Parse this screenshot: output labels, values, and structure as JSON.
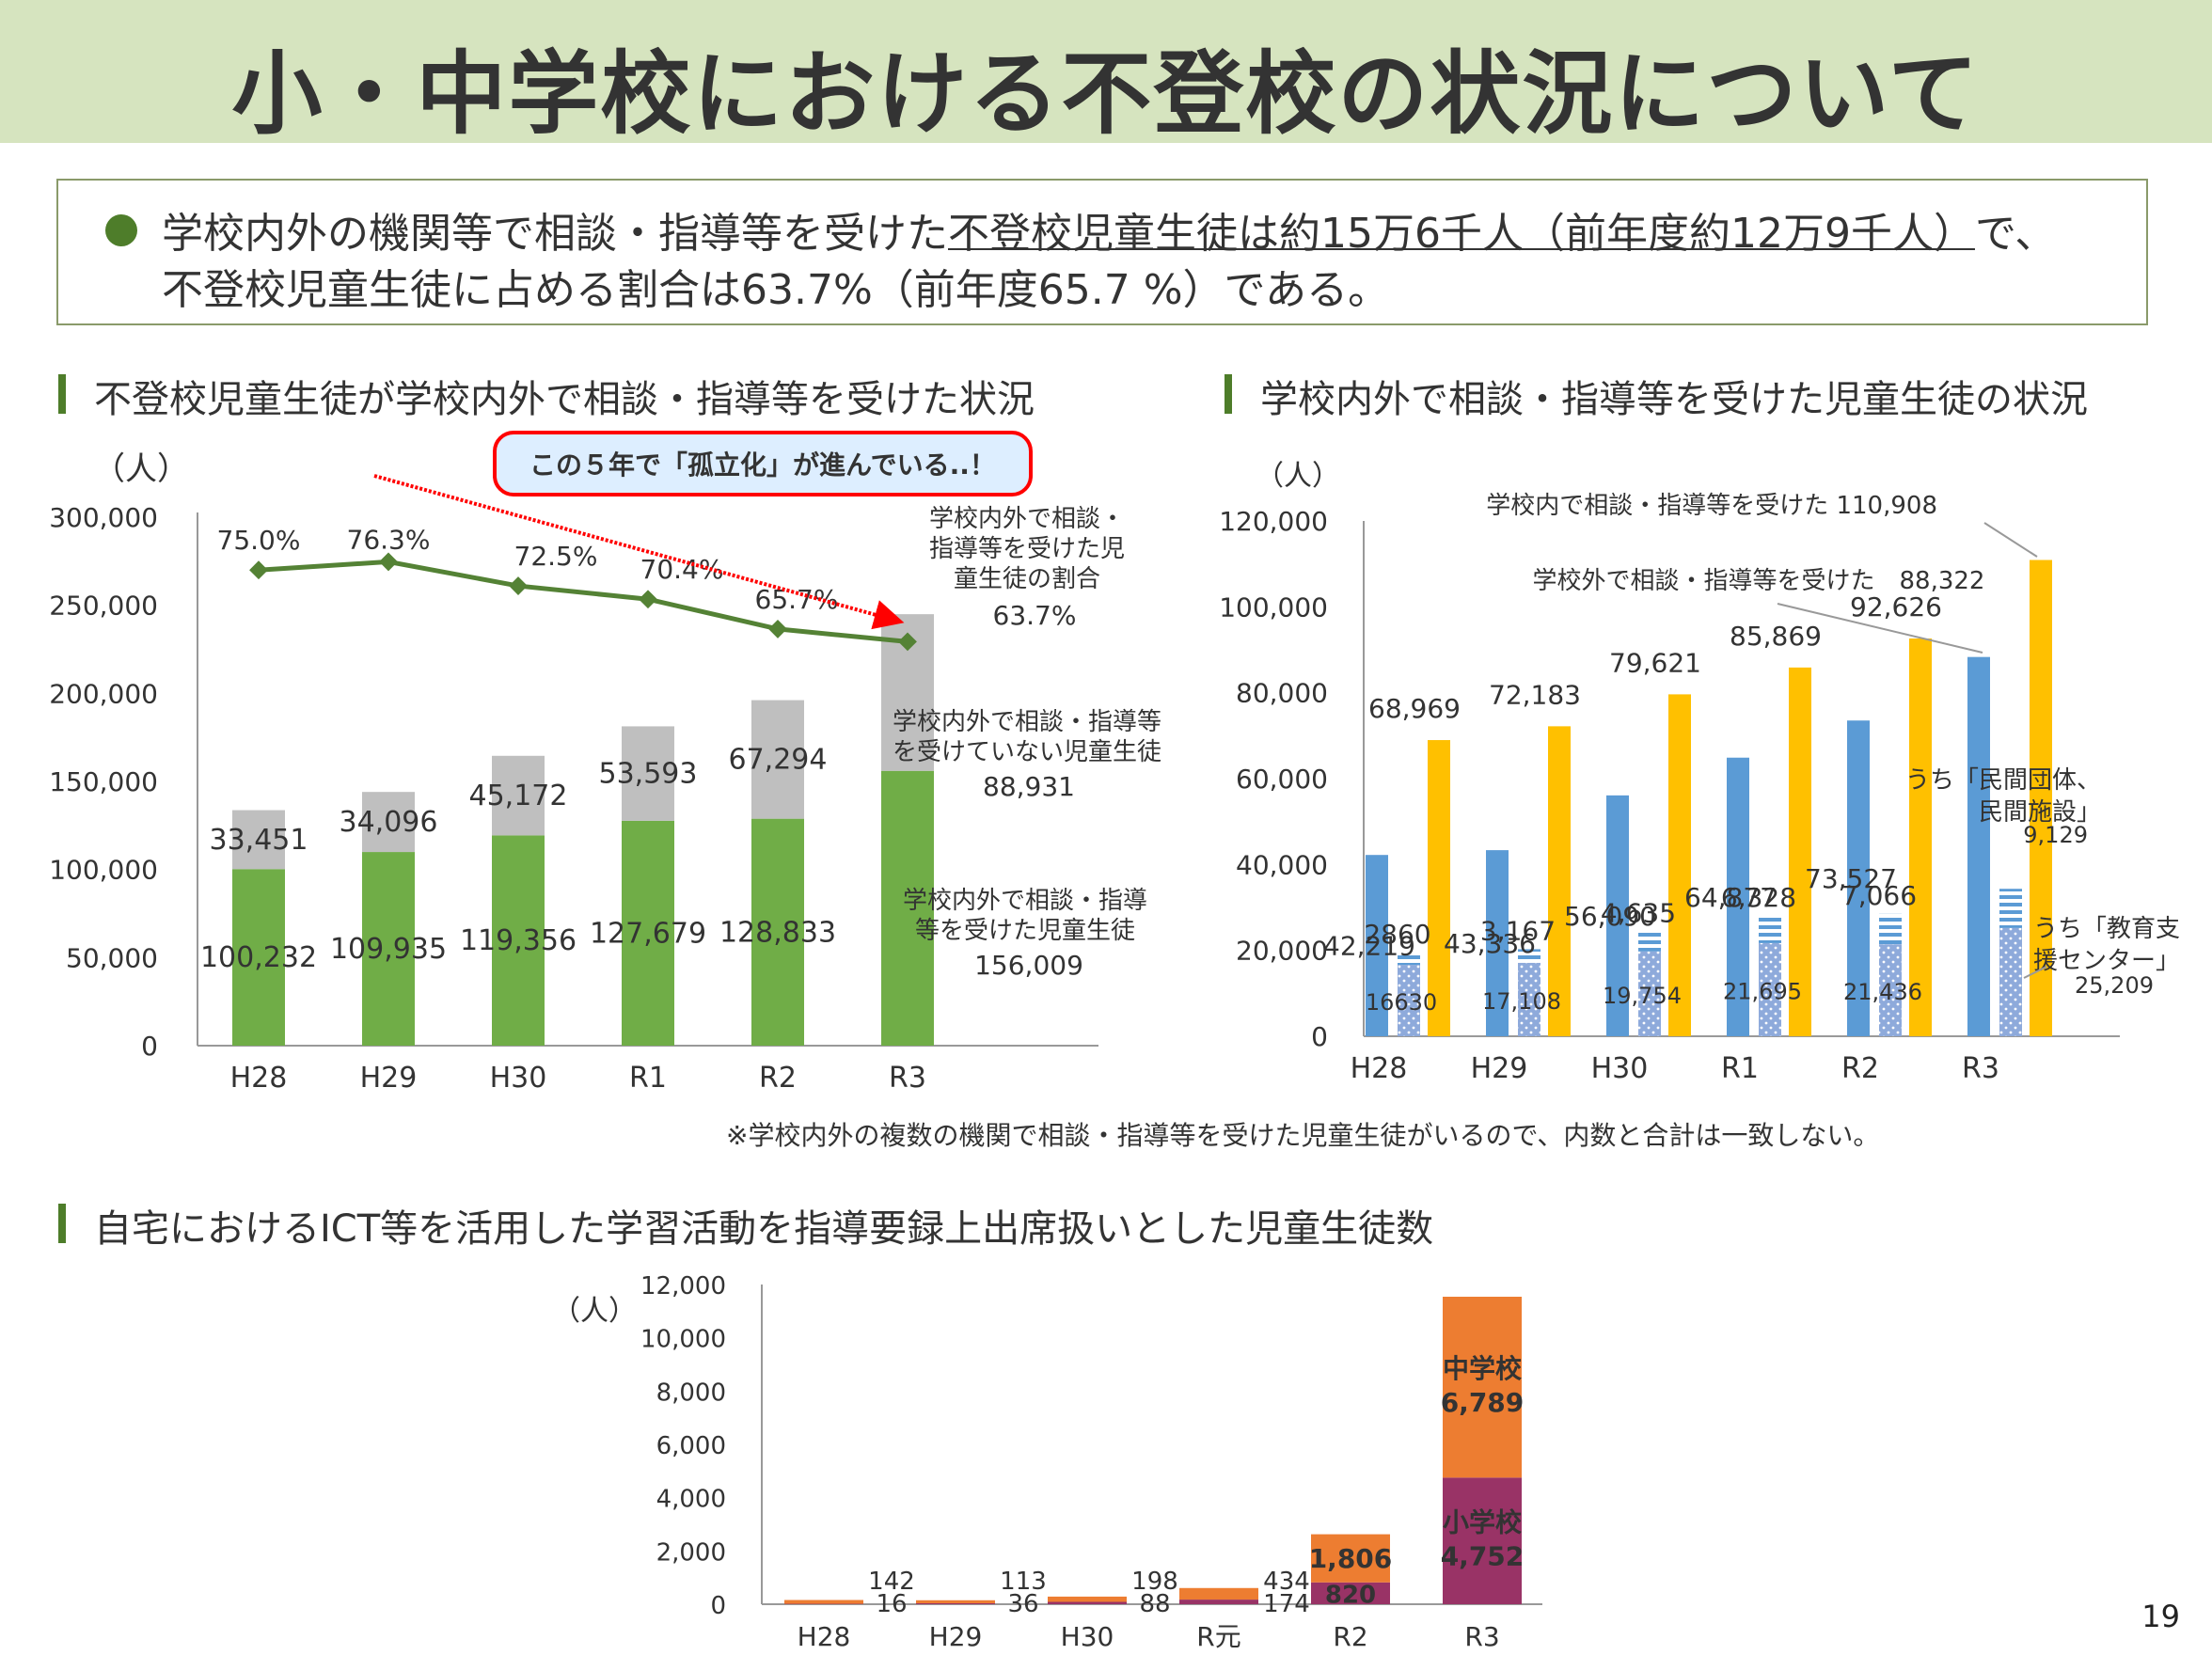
{
  "title": "小・中学校における不登校の状況について",
  "summary": {
    "line1_prefix": "学校内外の機関等で相談・指導等を受けた",
    "line1_underlined": "不登校児童生徒は約15万6千人（前年度約12万9千人）",
    "line1_suffix": "で、",
    "line2": "不登校児童生徒に占める割合は63.7%（前年度65.7 %）である。"
  },
  "sections": {
    "chart1_title": "不登校児童生徒が学校内外で相談・指導等を受けた状況",
    "chart2_title": "学校内外で相談・指導等を受けた児童生徒の状況",
    "chart3_title": "自宅におけるICT等を活用した学習活動を指導要録上出席扱いとした児童生徒数"
  },
  "footnote": "※学校内外の複数の機関で相談・指導等を受けた児童生徒がいるので、内数と合計は一致しない。",
  "page_number": "19",
  "callout": "この５年で「孤立化」が進んでいる..！",
  "colors": {
    "green": "#70ad47",
    "gray": "#bfbfbf",
    "line": "#548235",
    "blue": "#5b9bd5",
    "yellow": "#ffc000",
    "lightblue": "#8eaadb",
    "orange": "#ed7d31",
    "purple": "#993366",
    "red": "#ff0000"
  },
  "chart_data": [
    {
      "type": "bar",
      "stacked": true,
      "ylabel": "（人）",
      "ylim": [
        0,
        300000
      ],
      "yticks": [
        "0",
        "50,000",
        "100,000",
        "150,000",
        "200,000",
        "250,000",
        "300,000"
      ],
      "categories": [
        "H28",
        "H29",
        "H30",
        "R1",
        "R2",
        "R3"
      ],
      "series": [
        {
          "name": "学校内外で相談・指導等を受けた児童生徒",
          "values": [
            100232,
            109935,
            119356,
            127679,
            128833,
            156009
          ],
          "labels": [
            "100,232",
            "109,935",
            "119,356",
            "127,679",
            "128,833",
            "156,009"
          ]
        },
        {
          "name": "学校内外で相談・指導等を受けていない児童生徒",
          "values": [
            33451,
            34096,
            45172,
            53593,
            67294,
            88931
          ],
          "labels": [
            "33,451",
            "34,096",
            "45,172",
            "53,593",
            "67,294",
            "88,931"
          ]
        }
      ],
      "line": {
        "name": "学校内外で相談・指導等を受けた児童生徒の割合",
        "values": [
          75.0,
          76.3,
          72.5,
          70.4,
          65.7,
          63.7
        ],
        "labels": [
          "75.0%",
          "76.3%",
          "72.5%",
          "70.4%",
          "65.7%",
          "63.7%"
        ]
      },
      "annotations": {
        "rate_lines": [
          "学校内外で相談・",
          "指導等を受けた児",
          "童生徒の割合"
        ],
        "rate_value": "63.7%",
        "not_lines": [
          "学校内外で相談・指導等",
          "を受けていない児童生徒"
        ],
        "not_value": "88,931",
        "yes_lines": [
          "学校内外で相談・指導",
          "等を受けた児童生徒"
        ],
        "yes_value": "156,009"
      }
    },
    {
      "type": "bar",
      "ylabel": "（人）",
      "ylim": [
        0,
        120000
      ],
      "yticks": [
        "0",
        "20,000",
        "40,000",
        "60,000",
        "80,000",
        "100,000",
        "120,000"
      ],
      "categories": [
        "H28",
        "H29",
        "H30",
        "R1",
        "R2",
        "R3"
      ],
      "series": [
        {
          "name": "学校外で相談・指導等を受けた",
          "values": [
            42219,
            43336,
            56090,
            64877,
            73527,
            88322
          ],
          "labels": [
            "42,219",
            "43,336",
            "56,090",
            "64,877",
            "73,527",
            "88,322"
          ]
        },
        {
          "name": "うち「民間団体、民間施設」",
          "values": [
            2860,
            3167,
            4635,
            6328,
            7066,
            9129
          ],
          "labels": [
            "2860",
            "3,167",
            "4,635",
            "6,328",
            "7,066",
            "9,129"
          ]
        },
        {
          "name": "うち「教育支援センター」",
          "values": [
            16630,
            17108,
            19754,
            21695,
            21436,
            25209
          ],
          "labels": [
            "16630",
            "17,108",
            "19,754",
            "21,695",
            "21,436",
            "25,209"
          ]
        },
        {
          "name": "学校内で相談・指導等を受けた",
          "values": [
            68969,
            72183,
            79621,
            85869,
            92626,
            110908
          ],
          "labels": [
            "68,969",
            "72,183",
            "79,621",
            "85,869",
            "92,626",
            "110,908"
          ]
        }
      ],
      "annotations": {
        "inside": "学校内で相談・指導等を受けた",
        "outside": "学校外で相談・指導等を受けた",
        "private_lines": [
          "うち「民間団体、",
          "民間施設」"
        ],
        "center_lines": [
          "うち「教育支",
          "援センター」"
        ]
      }
    },
    {
      "type": "bar",
      "stacked": true,
      "ylabel": "（人）",
      "ylim": [
        0,
        12000
      ],
      "yticks": [
        "0",
        "2,000",
        "4,000",
        "6,000",
        "8,000",
        "10,000",
        "12,000"
      ],
      "categories": [
        "H28",
        "H29",
        "H30",
        "R元",
        "R2",
        "R3"
      ],
      "series": [
        {
          "name": "小学校",
          "values": [
            16,
            36,
            88,
            174,
            820,
            4752
          ],
          "labels": [
            "16",
            "36",
            "88",
            "174",
            "820",
            "4,752"
          ]
        },
        {
          "name": "中学校",
          "values": [
            142,
            113,
            198,
            434,
            1806,
            6789
          ],
          "labels": [
            "142",
            "113",
            "198",
            "434",
            "1,806",
            "6,789"
          ]
        }
      ]
    }
  ]
}
